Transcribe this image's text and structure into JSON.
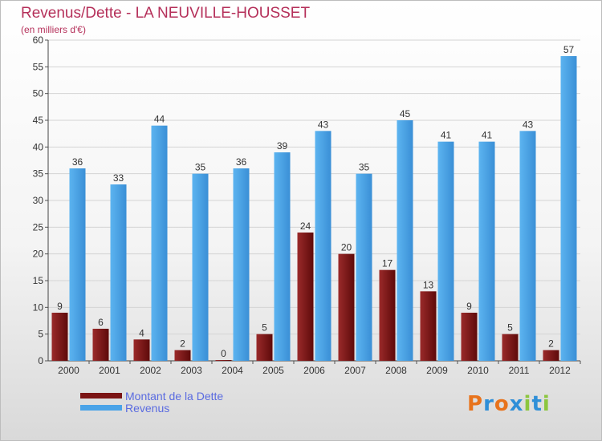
{
  "chart_data": {
    "type": "bar",
    "title": "Revenus/Dette - LA NEUVILLE-HOUSSET",
    "subtitle": "(en milliers d'€)",
    "categories": [
      "2000",
      "2001",
      "2002",
      "2003",
      "2004",
      "2005",
      "2006",
      "2007",
      "2008",
      "2009",
      "2010",
      "2011",
      "2012"
    ],
    "series": [
      {
        "name": "Montant de la Dette",
        "color": "#7b1414",
        "values": [
          9,
          6,
          4,
          2,
          0,
          5,
          24,
          20,
          17,
          13,
          9,
          5,
          2
        ]
      },
      {
        "name": "Revenus",
        "color": "#4aa3e8",
        "values": [
          36,
          33,
          44,
          35,
          36,
          39,
          43,
          35,
          45,
          41,
          41,
          43,
          57
        ]
      }
    ],
    "ylim": [
      0,
      60
    ],
    "yticks": [
      0,
      5,
      10,
      15,
      20,
      25,
      30,
      35,
      40,
      45,
      50,
      55,
      60
    ],
    "grid": true,
    "legend_position": "bottom-left"
  },
  "logo": {
    "text": "Proxiti",
    "letters": [
      "P",
      "r",
      "o",
      "x",
      "i",
      "t",
      "i"
    ],
    "colors": [
      "#e8731c",
      "#2f8fd8",
      "#e8731c",
      "#2f8fd8",
      "#8cc63f",
      "#2f8fd8",
      "#8cc63f"
    ]
  }
}
